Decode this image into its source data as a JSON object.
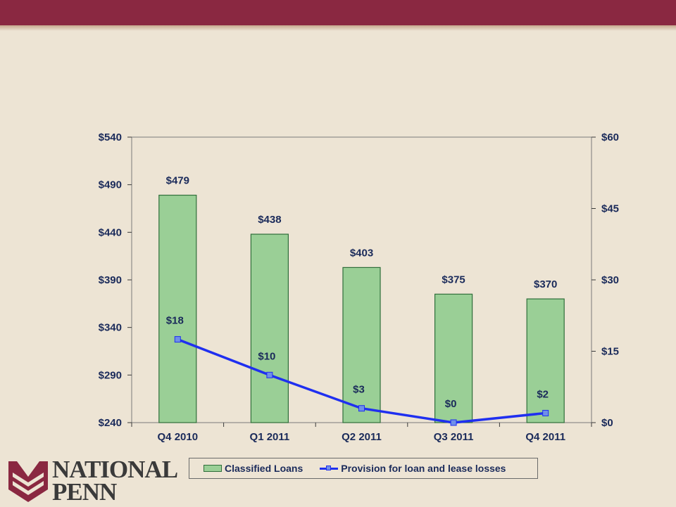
{
  "brand": {
    "logo_line1": "NATIONAL",
    "logo_line2": "PENN",
    "band_color": "#8a2841"
  },
  "chart_data": {
    "type": "bar",
    "categories": [
      "Q4 2010",
      "Q1 2011",
      "Q2 2011",
      "Q3 2011",
      "Q4 2011"
    ],
    "series": [
      {
        "name": "Classified Loans",
        "type": "bar",
        "axis": "left",
        "values": [
          479,
          438,
          403,
          375,
          370
        ],
        "labels": [
          "$479",
          "$438",
          "$403",
          "$375",
          "$370"
        ],
        "color": "#9acf96"
      },
      {
        "name": "Provision for loan and lease losses",
        "type": "line",
        "axis": "right",
        "values": [
          17.5,
          10,
          3,
          0,
          2
        ],
        "labels": [
          "$18",
          "$10",
          "$3",
          "$0",
          "$2"
        ],
        "color": "#1f2ff0"
      }
    ],
    "y_left": {
      "min": 240,
      "max": 540,
      "ticks": [
        540,
        490,
        440,
        390,
        340,
        290,
        240
      ],
      "tick_labels": [
        "$540",
        "$490",
        "$440",
        "$390",
        "$340",
        "$290",
        "$240"
      ]
    },
    "y_right": {
      "min": 0,
      "max": 60,
      "ticks": [
        60,
        45,
        30,
        15,
        0
      ],
      "tick_labels": [
        "$60",
        "$45",
        "$30",
        "$15",
        "$0"
      ]
    },
    "grid": false,
    "legend": "bottom"
  }
}
